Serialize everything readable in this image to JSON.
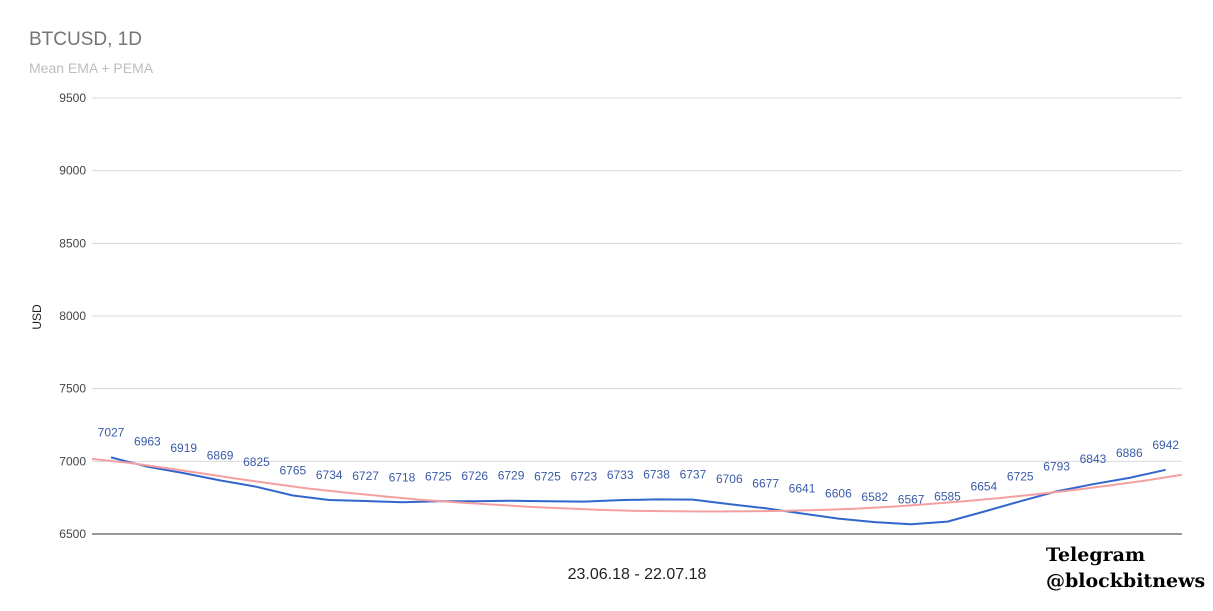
{
  "chart_data": {
    "type": "line",
    "title": "BTCUSD, 1D",
    "subtitle": "Mean EMA + PEMA",
    "xlabel": "23.06.18 - 22.07.18",
    "ylabel": "USD",
    "ylim": [
      6500,
      9500
    ],
    "yticks": [
      "9500",
      "9000",
      "8500",
      "8000",
      "7500",
      "7000",
      "6500"
    ],
    "grid": true,
    "series": [
      {
        "name": "",
        "color": "#3366cc",
        "labeled": true,
        "values": [
          7027,
          6963,
          6919,
          6869,
          6825,
          6765,
          6734,
          6727,
          6718,
          6725,
          6726,
          6729,
          6725,
          6723,
          6733,
          6738,
          6737,
          6706,
          6677,
          6641,
          6606,
          6582,
          6567,
          6585,
          6654,
          6725,
          6793,
          6843,
          6886,
          6942
        ]
      },
      {
        "name": "",
        "color": "#f4a0a0",
        "labeled": false,
        "values": [
          7017,
          6990,
          6955,
          6918,
          6880,
          6845,
          6812,
          6785,
          6760,
          6737,
          6719,
          6703,
          6688,
          6676,
          6666,
          6659,
          6656,
          6655,
          6656,
          6659,
          6665,
          6674,
          6688,
          6706,
          6725,
          6748,
          6774,
          6802,
          6834,
          6868,
          6908
        ]
      }
    ]
  },
  "watermark": {
    "line1": "Telegram",
    "line2": "@blockbitnews"
  }
}
